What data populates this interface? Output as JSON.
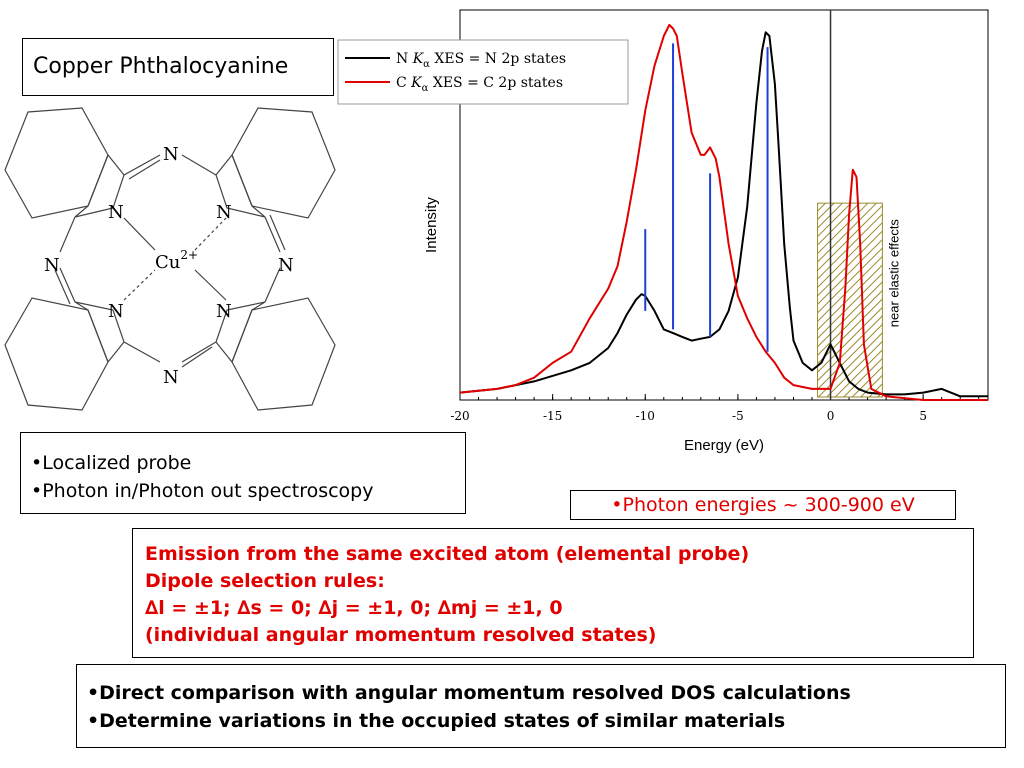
{
  "slide": {
    "molecule_title": "Copper Phthalocyanine",
    "molecule_atoms": {
      "nitrogen": "N",
      "metal": "Cu",
      "charge": "2+"
    },
    "probe_bullets": [
      "•Localized probe",
      "•Photon in/Photon out spectroscopy"
    ],
    "photon_energies": "•Photon energies ~ 300-900 eV",
    "rules_lines": [
      "Emission from the same excited atom (elemental probe)",
      "Dipole selection rules:",
      "∆l = ±1; ∆s = 0; ∆j = ±1, 0; ∆mj = ±1, 0",
      "(individual angular momentum resolved states)"
    ],
    "summary_bullets": [
      "•Direct comparison with angular momentum resolved DOS calculations",
      "•Determine variations in the occupied states of similar materials"
    ]
  },
  "colors": {
    "n_series": "#000000",
    "c_series": "#e00000",
    "peak_markers": "#1f3fd6",
    "hatch": "#9a8a2a",
    "red_text": "#e00000"
  },
  "chart_data": {
    "type": "line",
    "xlabel": "Energy (eV)",
    "ylabel": "Intensity",
    "xlim": [
      -20,
      8.5
    ],
    "ylim": [
      0,
      1.05
    ],
    "xticks": [
      -20,
      -15,
      -10,
      -5,
      0,
      5
    ],
    "yticks_shown": false,
    "grid": false,
    "legend_position": "top-left",
    "series": [
      {
        "name": "N Kα XES = N 2p states",
        "legend_parts": [
          "N ",
          "K",
          "α",
          " XES = N 2p states"
        ],
        "color": "#000000",
        "x": [
          -20,
          -18,
          -16,
          -14,
          -13,
          -12,
          -11.5,
          -11,
          -10.5,
          -10.2,
          -10,
          -9.5,
          -9,
          -8.5,
          -8,
          -7.5,
          -7,
          -6.5,
          -6,
          -5.5,
          -5,
          -4.5,
          -4,
          -3.7,
          -3.5,
          -3.3,
          -3,
          -2.8,
          -2.5,
          -2.2,
          -2,
          -1.5,
          -1,
          -0.5,
          0,
          0.5,
          1,
          1.5,
          2,
          3,
          4,
          5,
          6,
          7,
          8.5
        ],
        "y": [
          0.02,
          0.03,
          0.05,
          0.08,
          0.1,
          0.14,
          0.18,
          0.23,
          0.27,
          0.285,
          0.28,
          0.24,
          0.19,
          0.18,
          0.17,
          0.16,
          0.165,
          0.17,
          0.19,
          0.24,
          0.33,
          0.52,
          0.8,
          0.94,
          0.99,
          0.98,
          0.85,
          0.68,
          0.42,
          0.25,
          0.16,
          0.1,
          0.08,
          0.1,
          0.15,
          0.1,
          0.05,
          0.03,
          0.02,
          0.015,
          0.015,
          0.02,
          0.03,
          0.01,
          0.01
        ]
      },
      {
        "name": "C Kα XES = C 2p states",
        "legend_parts": [
          "C ",
          "K",
          "α",
          " XES = C 2p states"
        ],
        "color": "#e00000",
        "x": [
          -20,
          -18,
          -17,
          -16,
          -15,
          -14,
          -13,
          -12,
          -11.5,
          -11,
          -10.5,
          -10,
          -9.5,
          -9,
          -8.7,
          -8.5,
          -8.3,
          -8,
          -7.5,
          -7,
          -6.8,
          -6.5,
          -6.2,
          -6,
          -5.5,
          -5,
          -4.5,
          -4,
          -3.5,
          -3,
          -2.5,
          -2,
          -1,
          0,
          0.5,
          0.8,
          1,
          1.2,
          1.4,
          1.6,
          1.8,
          2.2,
          3,
          5,
          8.5
        ],
        "y": [
          0.02,
          0.03,
          0.04,
          0.06,
          0.1,
          0.13,
          0.22,
          0.3,
          0.36,
          0.48,
          0.62,
          0.78,
          0.9,
          0.98,
          1.01,
          1.0,
          0.98,
          0.88,
          0.72,
          0.66,
          0.66,
          0.68,
          0.65,
          0.6,
          0.42,
          0.28,
          0.22,
          0.17,
          0.13,
          0.1,
          0.06,
          0.04,
          0.03,
          0.03,
          0.1,
          0.3,
          0.5,
          0.62,
          0.6,
          0.42,
          0.15,
          0.03,
          0.01,
          0.0,
          0.0
        ]
      }
    ],
    "peak_markers": {
      "x": [
        -10,
        -8.5,
        -6.5,
        -3.4
      ],
      "y_top": [
        0.46,
        0.96,
        0.61,
        0.95
      ],
      "y_bottom": [
        0.24,
        0.19,
        0.17,
        0.13
      ]
    },
    "shaded_region": {
      "x": [
        -0.7,
        2.8
      ],
      "y": [
        0,
        0.53
      ],
      "label": "near elastic effects"
    },
    "reference_line_x": 0
  }
}
